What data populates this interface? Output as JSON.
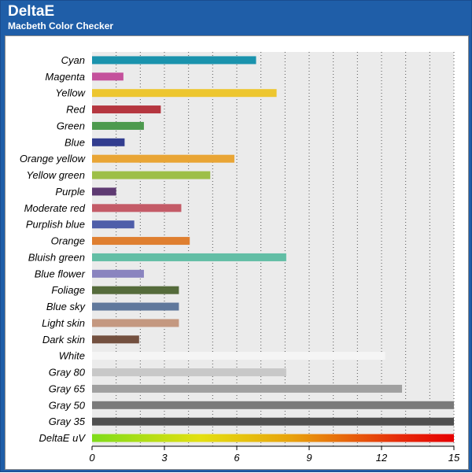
{
  "header": {
    "title": "DeltaE",
    "subtitle": "Macbeth Color Checker"
  },
  "chart_data": {
    "type": "bar",
    "orientation": "horizontal",
    "title": "DeltaE",
    "subtitle": "Macbeth Color Checker",
    "xlim": [
      0,
      15
    ],
    "xticks": [
      0,
      3,
      6,
      9,
      12,
      15
    ],
    "grid": true,
    "categories": [
      "Cyan",
      "Magenta",
      "Yellow",
      "Red",
      "Green",
      "Blue",
      "Orange yellow",
      "Yellow green",
      "Purple",
      "Moderate red",
      "Purplish blue",
      "Orange",
      "Bluish green",
      "Blue flower",
      "Foliage",
      "Blue sky",
      "Light skin",
      "Dark skin",
      "White",
      "Gray 80",
      "Gray 65",
      "Gray 50",
      "Gray 35",
      "DeltaE uV"
    ],
    "values": [
      6.8,
      1.3,
      7.65,
      2.85,
      2.15,
      1.35,
      5.9,
      4.9,
      1.0,
      3.7,
      1.75,
      4.05,
      8.05,
      2.15,
      3.6,
      3.6,
      3.6,
      1.95,
      12.15,
      8.05,
      12.85,
      15.0,
      15.0,
      15.0
    ],
    "colors": [
      "#1a93ad",
      "#c4519c",
      "#edc62f",
      "#b5363f",
      "#4d9a4e",
      "#323d8f",
      "#e9a535",
      "#9dbf47",
      "#5e3a72",
      "#c45b67",
      "#4f5ea9",
      "#df7f30",
      "#62bea5",
      "#8a84bf",
      "#556b3b",
      "#60789c",
      "#c49880",
      "#73503f",
      "#f5f5f5",
      "#c8c8c8",
      "#a0a0a0",
      "#7a7a7a",
      "#4f4f4f",
      "gradient"
    ],
    "gradient_colors": [
      "#7fdc1a",
      "#e4e011",
      "#e8a20c",
      "#e62a0a",
      "#e60000"
    ]
  }
}
